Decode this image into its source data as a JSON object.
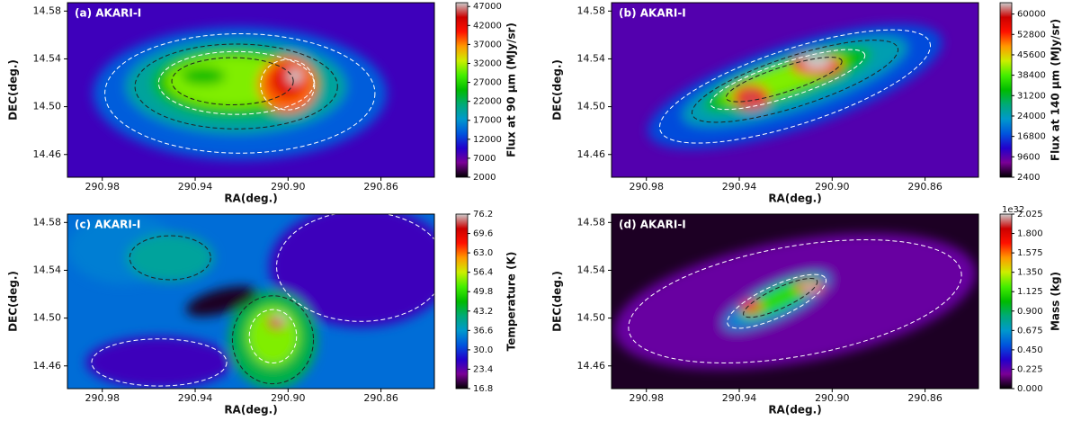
{
  "chart_data": [
    {
      "type": "heatmap",
      "annotation": "(a) AKARI-I",
      "xlabel": "RA(deg.)",
      "ylabel": "DEC(deg.)",
      "xlim": [
        290.995,
        290.837
      ],
      "xticks": [
        290.98,
        290.94,
        {
          "value": 290.9,
          "label": "290.90"
        },
        290.86
      ],
      "ylim": [
        14.441,
        14.587
      ],
      "yticks": [
        14.46,
        {
          "value": 14.5,
          "label": "14.50"
        },
        14.54,
        14.58
      ],
      "colorbar_label": "Flux at 90 μm (MJy/sr)",
      "clim": [
        2000,
        48000
      ],
      "cticks": [
        2000,
        7000,
        12000,
        17000,
        22000,
        27000,
        32000,
        37000,
        42000,
        47000
      ],
      "colormap": [
        "#000000",
        "#7a0096",
        "#2200cc",
        "#0055dd",
        "#0099cc",
        "#00aa77",
        "#00bb00",
        "#44ee00",
        "#ccee00",
        "#ff9900",
        "#ff1100",
        "#cc0000",
        "#cccccc"
      ]
    },
    {
      "type": "heatmap",
      "annotation": "(b) AKARI-I",
      "xlabel": "RA(deg.)",
      "ylabel": "DEC(deg.)",
      "xlim": [
        290.995,
        290.837
      ],
      "xticks": [
        290.98,
        290.94,
        {
          "value": 290.9,
          "label": "290.90"
        },
        290.86
      ],
      "ylim": [
        14.441,
        14.587
      ],
      "yticks": [
        14.46,
        {
          "value": 14.5,
          "label": "14.50"
        },
        14.54,
        14.58
      ],
      "colorbar_label": "Flux at 140 μm (MJy/sr)",
      "clim": [
        2400,
        64000
      ],
      "cticks": [
        2400,
        9600,
        16800,
        24000,
        31200,
        38400,
        45600,
        52800,
        60000
      ],
      "colormap": [
        "#000000",
        "#7a0096",
        "#2200cc",
        "#0055dd",
        "#0099cc",
        "#00aa77",
        "#00bb00",
        "#44ee00",
        "#ccee00",
        "#ff9900",
        "#ff1100",
        "#cc0000",
        "#cccccc"
      ]
    },
    {
      "type": "heatmap",
      "annotation": "(c) AKARI-I",
      "xlabel": "RA(deg.)",
      "ylabel": "DEC(deg.)",
      "xlim": [
        290.995,
        290.837
      ],
      "xticks": [
        290.98,
        290.94,
        {
          "value": 290.9,
          "label": "290.90"
        },
        290.86
      ],
      "ylim": [
        14.441,
        14.587
      ],
      "yticks": [
        14.46,
        {
          "value": 14.5,
          "label": "14.50"
        },
        14.54,
        14.58
      ],
      "colorbar_label": "Temperature (K)",
      "clim": [
        16.8,
        76.2
      ],
      "cticks": [
        16.8,
        23.4,
        {
          "value": 30,
          "label": "30.0"
        },
        36.6,
        43.2,
        49.8,
        56.4,
        {
          "value": 63,
          "label": "63.0"
        },
        69.6,
        76.2
      ],
      "colormap": [
        "#000000",
        "#7a0096",
        "#2200cc",
        "#0055dd",
        "#0099cc",
        "#00aa77",
        "#00bb00",
        "#44ee00",
        "#ccee00",
        "#ff9900",
        "#ff1100",
        "#cc0000",
        "#cccccc"
      ]
    },
    {
      "type": "heatmap",
      "annotation": "(d) AKARI-I",
      "xlabel": "RA(deg.)",
      "ylabel": "DEC(deg.)",
      "xlim": [
        290.995,
        290.837
      ],
      "xticks": [
        290.98,
        290.94,
        {
          "value": 290.9,
          "label": "290.90"
        },
        290.86
      ],
      "ylim": [
        14.441,
        14.587
      ],
      "yticks": [
        14.46,
        {
          "value": 14.5,
          "label": "14.50"
        },
        14.54,
        14.58
      ],
      "colorbar_label": "Mass (kg)",
      "colorbar_offset": "1e32",
      "clim": [
        0,
        2.025
      ],
      "cticks": [
        {
          "value": 0,
          "label": "0.000"
        },
        0.225,
        {
          "value": 0.45,
          "label": "0.450"
        },
        0.675,
        {
          "value": 0.9,
          "label": "0.900"
        },
        1.125,
        {
          "value": 1.35,
          "label": "1.350"
        },
        1.575,
        {
          "value": 1.8,
          "label": "1.800"
        },
        2.025
      ],
      "colormap": [
        "#000000",
        "#7a0096",
        "#2200cc",
        "#0055dd",
        "#0099cc",
        "#00aa77",
        "#00bb00",
        "#44ee00",
        "#ccee00",
        "#ff9900",
        "#ff1100",
        "#cc0000",
        "#cccccc"
      ]
    }
  ]
}
